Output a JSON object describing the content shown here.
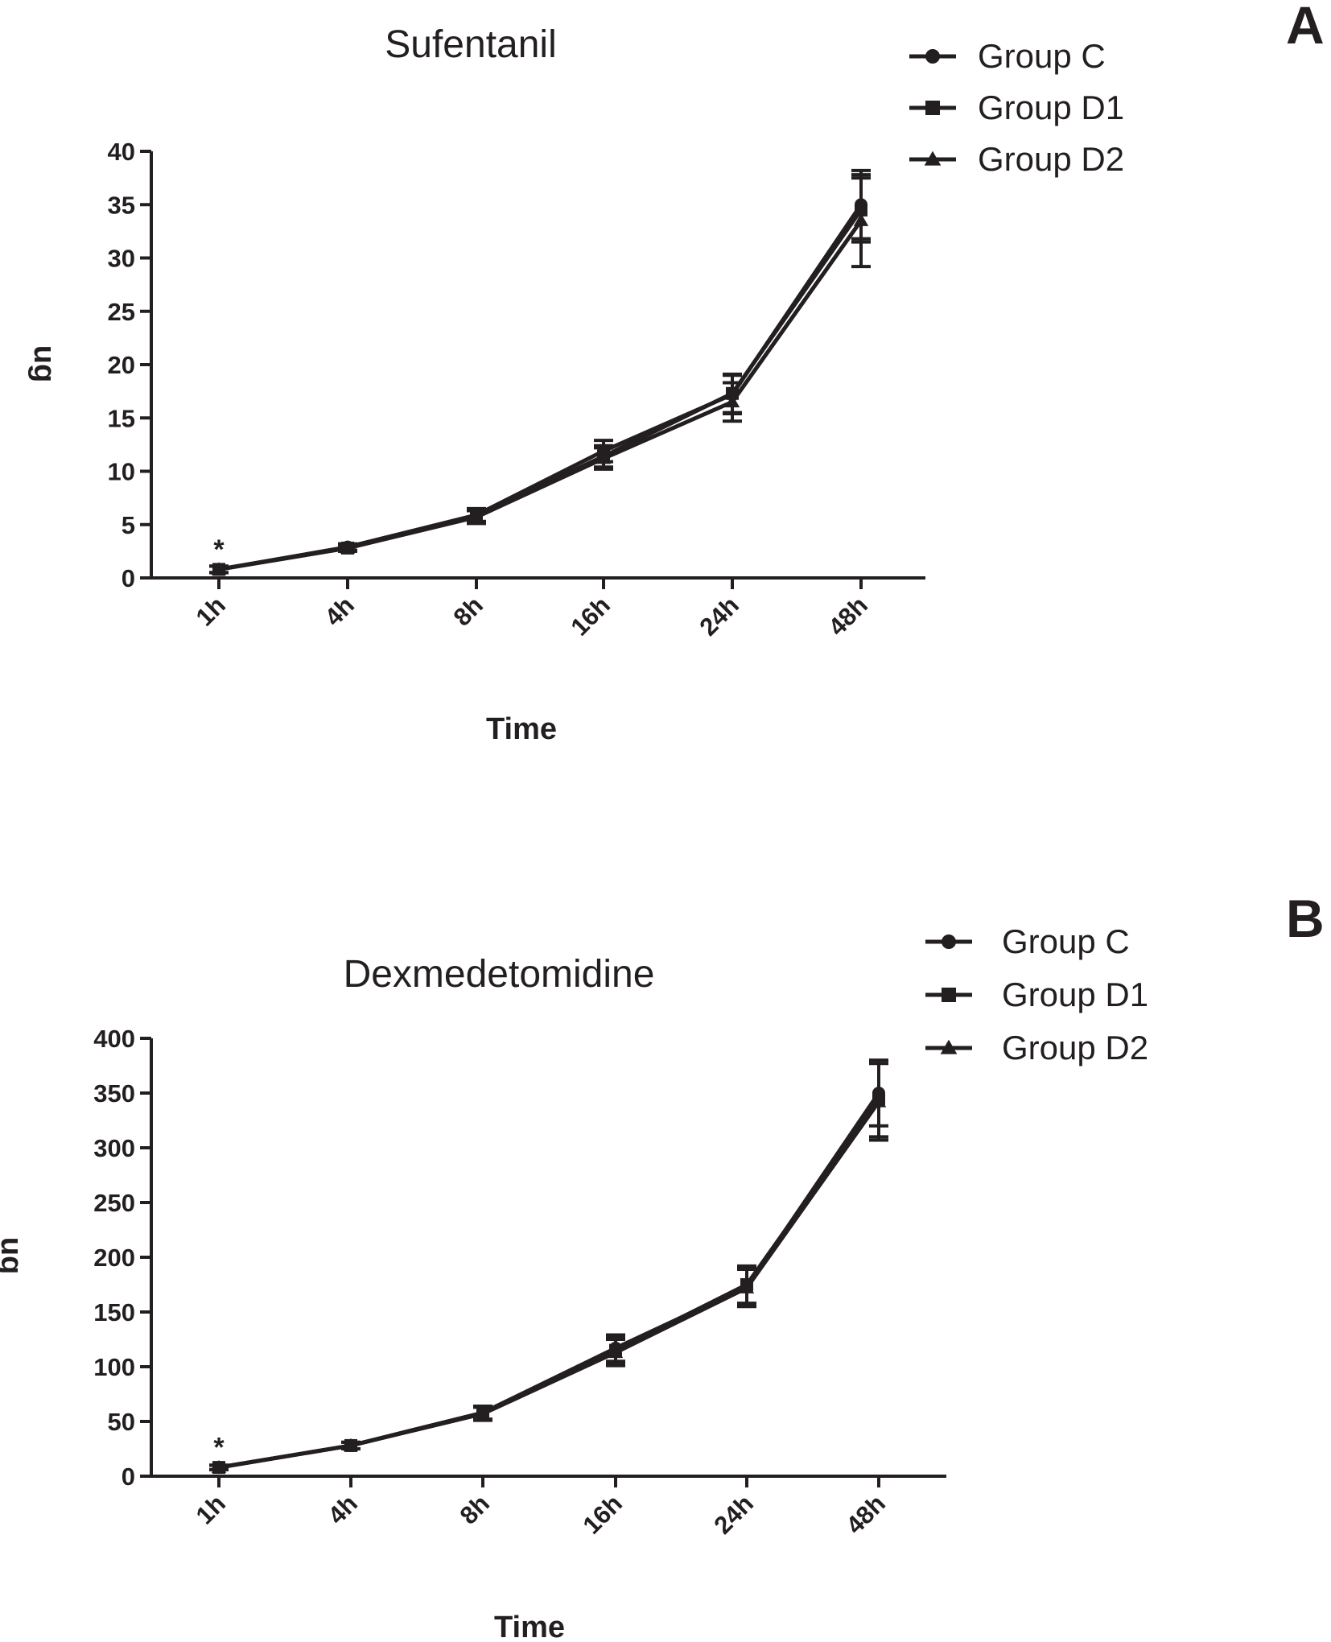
{
  "chart_data": [
    {
      "type": "line",
      "panel": "A",
      "title": "Sufentanil",
      "xlabel": "Time",
      "ylabel": "ug",
      "categories": [
        "1h",
        "4h",
        "8h",
        "16h",
        "24h",
        "48h"
      ],
      "ylim": [
        0,
        40
      ],
      "yticks": [
        0,
        5,
        10,
        15,
        20,
        25,
        30,
        35,
        40
      ],
      "legend_position": "top-right",
      "annotations": [
        {
          "text": "*",
          "category": "1h",
          "value": 2.7
        }
      ],
      "series": [
        {
          "name": "Group C",
          "marker": "circle",
          "values": [
            0.8,
            2.9,
            5.9,
            11.9,
            17.2,
            35.0
          ],
          "errors": [
            0.3,
            0.3,
            0.6,
            1.0,
            1.8,
            3.2
          ]
        },
        {
          "name": "Group D1",
          "marker": "square",
          "values": [
            0.8,
            2.8,
            5.8,
            11.4,
            17.3,
            34.5
          ],
          "errors": [
            0.3,
            0.3,
            0.6,
            1.0,
            1.8,
            3.0
          ]
        },
        {
          "name": "Group D2",
          "marker": "triangle",
          "values": [
            0.8,
            2.8,
            5.7,
            11.2,
            16.5,
            33.5
          ],
          "errors": [
            0.3,
            0.3,
            0.6,
            1.0,
            1.8,
            4.3
          ]
        }
      ]
    },
    {
      "type": "line",
      "panel": "B",
      "title": "Dexmedetomidine",
      "xlabel": "Time",
      "ylabel": "ug",
      "categories": [
        "1h",
        "4h",
        "8h",
        "16h",
        "24h",
        "48h"
      ],
      "ylim": [
        0,
        400
      ],
      "yticks": [
        0,
        50,
        100,
        150,
        200,
        250,
        300,
        350,
        400
      ],
      "legend_position": "top-right",
      "annotations": [
        {
          "text": "*",
          "category": "1h",
          "value": 27
        }
      ],
      "series": [
        {
          "name": "Group C",
          "marker": "circle",
          "values": [
            8,
            28,
            58,
            117,
            173,
            350
          ],
          "errors": [
            2,
            3,
            6,
            12,
            17,
            30
          ]
        },
        {
          "name": "Group D1",
          "marker": "square",
          "values": [
            8,
            28,
            58,
            115,
            175,
            345
          ],
          "errors": [
            2,
            3,
            6,
            12,
            17,
            35
          ]
        },
        {
          "name": "Group D2",
          "marker": "triangle",
          "values": [
            8,
            28,
            57,
            113,
            172,
            342
          ],
          "errors": [
            2,
            3,
            6,
            12,
            17,
            35
          ]
        }
      ]
    }
  ]
}
